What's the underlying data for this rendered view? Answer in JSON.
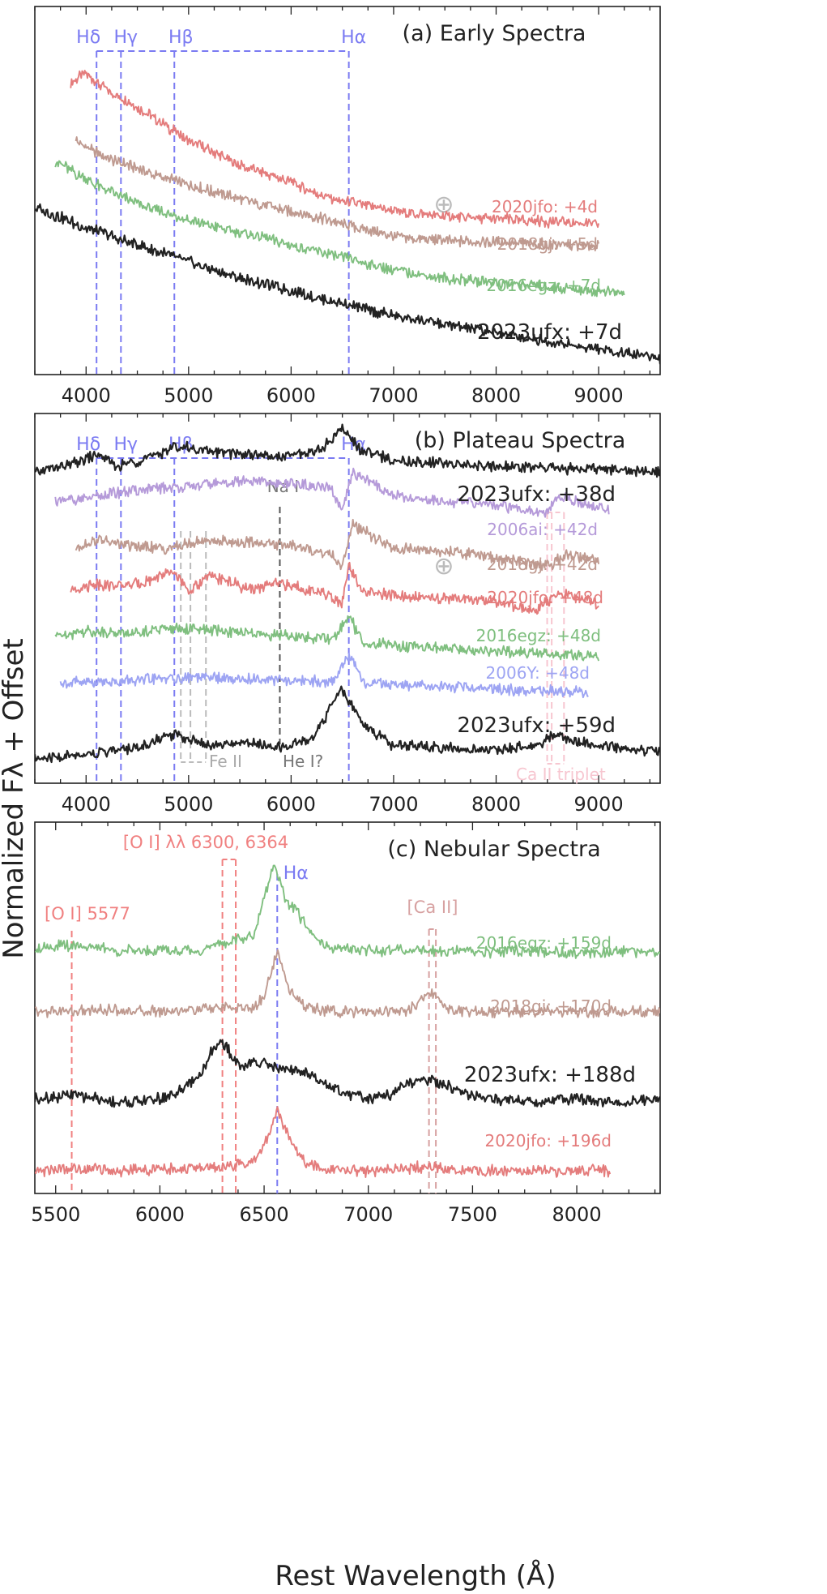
{
  "figure": {
    "ylabel": "Normalized Fλ + Offset",
    "xlabel": "Rest Wavelength (Å)"
  },
  "colors": {
    "2023ufx": "#222222",
    "2020jfo": "#e47c7c",
    "2018gj": "#bf9a90",
    "2016egz": "#7fbf7f",
    "2006ai": "#b59ad9",
    "2006Y": "#9da4f3",
    "hydrogen": "#7b7bf2",
    "naI": "#555555",
    "feII": "#bbbbbb",
    "caTriplet": "#f7c6d0",
    "oI": "#f08080",
    "caII": "#d7a1a1",
    "earth": "#bbbbbb"
  },
  "chart_data": [
    {
      "type": "line",
      "title": "(a) Early Spectra",
      "xlim": [
        3500,
        9600
      ],
      "xticks": [
        4000,
        5000,
        6000,
        7000,
        8000,
        9000
      ],
      "xtick_labels": [
        "4000",
        "5000",
        "6000",
        "7000",
        "8000",
        "9000"
      ],
      "ylim": [
        -0.2,
        4.2
      ],
      "line_markers": [
        {
          "label": "Hδ",
          "x": 4102
        },
        {
          "label": "Hγ",
          "x": 4340
        },
        {
          "label": "Hβ",
          "x": 4861
        },
        {
          "label": "Hα",
          "x": 6563
        }
      ],
      "telluric_label": "⊕",
      "telluric_x": 7700,
      "series": [
        {
          "name": "2020jfo: +4d",
          "key": "2020jfo",
          "x": [
            3850,
            4000,
            4200,
            4500,
            5000,
            5500,
            6000,
            6400,
            6800,
            7200,
            7600,
            8000,
            8500,
            9000
          ],
          "y": [
            3.3,
            3.4,
            3.2,
            3.0,
            2.6,
            2.3,
            2.1,
            1.9,
            1.8,
            1.72,
            1.68,
            1.66,
            1.63,
            1.6
          ]
        },
        {
          "name": "2018gj: +5d",
          "key": "2018gj",
          "x": [
            3900,
            4100,
            4400,
            4900,
            5500,
            6000,
            6500,
            7000,
            7500,
            8000,
            8500,
            9000
          ],
          "y": [
            2.6,
            2.45,
            2.3,
            2.1,
            1.9,
            1.75,
            1.6,
            1.45,
            1.4,
            1.38,
            1.36,
            1.34
          ]
        },
        {
          "name": "2016egz: +7d",
          "key": "2016egz",
          "x": [
            3700,
            3900,
            4200,
            4600,
            5000,
            5500,
            6000,
            6500,
            7000,
            7500,
            8000,
            8500,
            9000,
            9250
          ],
          "y": [
            2.35,
            2.2,
            2.0,
            1.8,
            1.65,
            1.5,
            1.35,
            1.2,
            1.05,
            0.95,
            0.9,
            0.85,
            0.8,
            0.78
          ]
        },
        {
          "name": "2023ufx: +7d",
          "key": "2023ufx",
          "x": [
            3500,
            4000,
            4500,
            5000,
            5500,
            6000,
            6500,
            7000,
            7500,
            8000,
            8500,
            9000,
            9600
          ],
          "y": [
            1.8,
            1.55,
            1.35,
            1.15,
            0.95,
            0.8,
            0.65,
            0.5,
            0.4,
            0.3,
            0.2,
            0.1,
            0.0
          ]
        }
      ],
      "labels": [
        {
          "text": "2020jfo: +4d",
          "key": "2020jfo"
        },
        {
          "text": "2018gj: +5d",
          "key": "2018gj"
        },
        {
          "text": "2016egz: +7d",
          "key": "2016egz"
        },
        {
          "text": "2023ufx: +7d",
          "key": "2023ufx"
        }
      ]
    },
    {
      "type": "line",
      "title": "(b) Plateau Spectra",
      "xlim": [
        3500,
        9600
      ],
      "xticks": [
        4000,
        5000,
        6000,
        7000,
        8000,
        9000
      ],
      "xtick_labels": [
        "4000",
        "5000",
        "6000",
        "7000",
        "8000",
        "9000"
      ],
      "ylim": [
        -0.3,
        6.0
      ],
      "line_markers": [
        {
          "label": "Hδ",
          "x": 4102
        },
        {
          "label": "Hγ",
          "x": 4340
        },
        {
          "label": "Hβ",
          "x": 4861
        },
        {
          "label": "Hα",
          "x": 6563
        }
      ],
      "na_line": {
        "label": "Na I",
        "x": 5890
      },
      "fe_lines": {
        "label": "Fe II",
        "x": [
          4924,
          5018,
          5169
        ]
      },
      "he_label": "He I?",
      "ca_triplet": {
        "label": "Ca II triplet",
        "x": [
          8498,
          8542,
          8662
        ]
      },
      "telluric_label": "⊕",
      "series": [
        {
          "name": "2023ufx: +38d",
          "key": "2023ufx",
          "x": [
            3500,
            3900,
            4100,
            4300,
            4700,
            4861,
            5200,
            5600,
            5900,
            6300,
            6500,
            6700,
            7000,
            8000,
            9000,
            9600
          ],
          "y": [
            5.0,
            5.15,
            5.3,
            5.1,
            5.3,
            5.45,
            5.35,
            5.3,
            5.25,
            5.4,
            5.75,
            5.35,
            5.2,
            5.1,
            5.05,
            5.0
          ]
        },
        {
          "name": "2006ai: +42d",
          "key": "2006ai",
          "x": [
            3700,
            4000,
            4500,
            5000,
            5500,
            6000,
            6400,
            6500,
            6600,
            7000,
            7500,
            8000,
            8500,
            8600,
            9000,
            9100
          ],
          "y": [
            4.5,
            4.55,
            4.7,
            4.75,
            4.85,
            4.8,
            4.7,
            4.3,
            5.0,
            4.6,
            4.5,
            4.45,
            4.3,
            4.6,
            4.4,
            4.35
          ]
        },
        {
          "name": "2018gj: +42d",
          "key": "2018gj",
          "x": [
            3900,
            4100,
            4400,
            4800,
            5200,
            5600,
            6000,
            6400,
            6500,
            6600,
            7000,
            7500,
            8000,
            8500,
            8700,
            9000
          ],
          "y": [
            3.7,
            3.85,
            3.75,
            3.7,
            3.85,
            3.8,
            3.75,
            3.6,
            3.4,
            4.1,
            3.7,
            3.65,
            3.55,
            3.4,
            3.6,
            3.5
          ]
        },
        {
          "name": "2020jfo: +48d",
          "key": "2020jfo",
          "x": [
            3850,
            4100,
            4400,
            4861,
            5000,
            5200,
            5600,
            5900,
            6300,
            6500,
            6563,
            6700,
            7000,
            7500,
            8000,
            8400,
            8600,
            9000
          ],
          "y": [
            3.0,
            3.1,
            3.05,
            3.3,
            2.95,
            3.25,
            3.0,
            3.1,
            2.95,
            2.75,
            3.4,
            2.95,
            2.9,
            2.85,
            2.8,
            2.65,
            2.95,
            2.75
          ]
        },
        {
          "name": "2016egz: +48d",
          "key": "2016egz",
          "x": [
            3700,
            4000,
            4400,
            4800,
            5200,
            5600,
            6000,
            6400,
            6563,
            6700,
            7000,
            7500,
            8000,
            8500,
            9000
          ],
          "y": [
            2.2,
            2.3,
            2.25,
            2.35,
            2.3,
            2.25,
            2.2,
            2.15,
            2.55,
            2.1,
            2.05,
            2.0,
            1.95,
            1.9,
            1.85
          ]
        },
        {
          "name": "2006Y: +48d",
          "key": "2006Y",
          "x": [
            3750,
            4000,
            4500,
            5000,
            5500,
            6000,
            6400,
            6563,
            6700,
            7000,
            7500,
            8000,
            8500,
            8900
          ],
          "y": [
            1.4,
            1.42,
            1.45,
            1.5,
            1.48,
            1.45,
            1.42,
            1.9,
            1.4,
            1.38,
            1.35,
            1.3,
            1.28,
            1.25
          ]
        },
        {
          "name": "2023ufx: +59d",
          "key": "2023ufx",
          "x": [
            3500,
            4000,
            4500,
            4861,
            5200,
            5600,
            5900,
            6200,
            6500,
            6700,
            7000,
            7500,
            8000,
            8400,
            8600,
            8800,
            9200,
            9600
          ],
          "y": [
            0.1,
            0.2,
            0.3,
            0.55,
            0.35,
            0.4,
            0.3,
            0.45,
            1.3,
            0.7,
            0.35,
            0.3,
            0.25,
            0.35,
            0.55,
            0.4,
            0.3,
            0.25
          ]
        }
      ],
      "labels": [
        {
          "text": "2023ufx: +38d",
          "key": "2023ufx"
        },
        {
          "text": "2006ai: +42d",
          "key": "2006ai"
        },
        {
          "text": "2018gj: +42d",
          "key": "2018gj"
        },
        {
          "text": "2020jfo: +48d",
          "key": "2020jfo"
        },
        {
          "text": "2016egz: +48d",
          "key": "2016egz"
        },
        {
          "text": "2006Y: +48d",
          "key": "2006Y"
        },
        {
          "text": "2023ufx: +59d",
          "key": "2023ufx"
        }
      ]
    },
    {
      "type": "line",
      "title": "(c) Nebular Spectra",
      "xlim": [
        5400,
        8400
      ],
      "xticks": [
        5500,
        6000,
        6500,
        7000,
        7500,
        8000
      ],
      "xtick_labels": [
        "5500",
        "6000",
        "6500",
        "7000",
        "7500",
        "8000"
      ],
      "ylim": [
        -0.3,
        4.6
      ],
      "oI5577": {
        "label": "[O I] 5577",
        "x": 5577
      },
      "oI_doublet": {
        "label": "[O I] λλ 6300, 6364",
        "x": [
          6300,
          6364
        ]
      },
      "halpha": {
        "label": "Hα",
        "x": 6563
      },
      "caII": {
        "label": "[Ca II]",
        "x": [
          7291,
          7324
        ]
      },
      "series": [
        {
          "name": "2016egz: +159d",
          "key": "2016egz",
          "x": [
            5400,
            5600,
            5800,
            6000,
            6200,
            6300,
            6450,
            6500,
            6550,
            6600,
            6700,
            6800,
            7000,
            7200,
            7400,
            7600,
            7800,
            8000,
            8400
          ],
          "y": [
            2.95,
            2.98,
            2.9,
            2.92,
            2.9,
            3.0,
            3.1,
            3.6,
            4.05,
            3.6,
            3.25,
            2.95,
            2.9,
            2.92,
            2.9,
            2.88,
            2.9,
            2.88,
            2.9
          ]
        },
        {
          "name": "2018gj: +170d",
          "key": "2018gj",
          "x": [
            5400,
            5800,
            6000,
            6300,
            6450,
            6500,
            6563,
            6620,
            6700,
            6800,
            7000,
            7200,
            7300,
            7400,
            7600,
            8000,
            8400
          ],
          "y": [
            2.1,
            2.12,
            2.1,
            2.15,
            2.15,
            2.3,
            2.9,
            2.4,
            2.15,
            2.1,
            2.1,
            2.12,
            2.35,
            2.12,
            2.1,
            2.1,
            2.1
          ]
        },
        {
          "name": "2023ufx: +188d",
          "key": "2023ufx",
          "x": [
            5400,
            5600,
            5800,
            6000,
            6100,
            6200,
            6250,
            6300,
            6350,
            6400,
            6450,
            6500,
            6600,
            6700,
            6800,
            6900,
            7000,
            7100,
            7200,
            7300,
            7400,
            7500,
            7600,
            7800,
            8000,
            8200,
            8400
          ],
          "y": [
            0.95,
            1.0,
            0.9,
            0.95,
            1.05,
            1.3,
            1.6,
            1.7,
            1.5,
            1.35,
            1.45,
            1.4,
            1.35,
            1.3,
            1.15,
            1.0,
            0.95,
            1.0,
            1.15,
            1.2,
            1.1,
            1.0,
            0.95,
            0.92,
            0.95,
            0.9,
            0.95
          ]
        },
        {
          "name": "2020jfo: +196d",
          "key": "2020jfo",
          "x": [
            5400,
            5600,
            5800,
            6000,
            6300,
            6450,
            6520,
            6563,
            6620,
            6700,
            6800,
            7000,
            7300,
            7500,
            8000,
            8160
          ],
          "y": [
            0.0,
            0.03,
            0.0,
            0.02,
            0.05,
            0.1,
            0.45,
            0.8,
            0.45,
            0.1,
            0.02,
            0.0,
            0.05,
            0.0,
            0.0,
            0.0
          ]
        }
      ],
      "labels": [
        {
          "text": "2016egz: +159d",
          "key": "2016egz"
        },
        {
          "text": "2018gj: +170d",
          "key": "2018gj"
        },
        {
          "text": "2023ufx: +188d",
          "key": "2023ufx"
        },
        {
          "text": "2020jfo: +196d",
          "key": "2020jfo"
        }
      ]
    }
  ]
}
